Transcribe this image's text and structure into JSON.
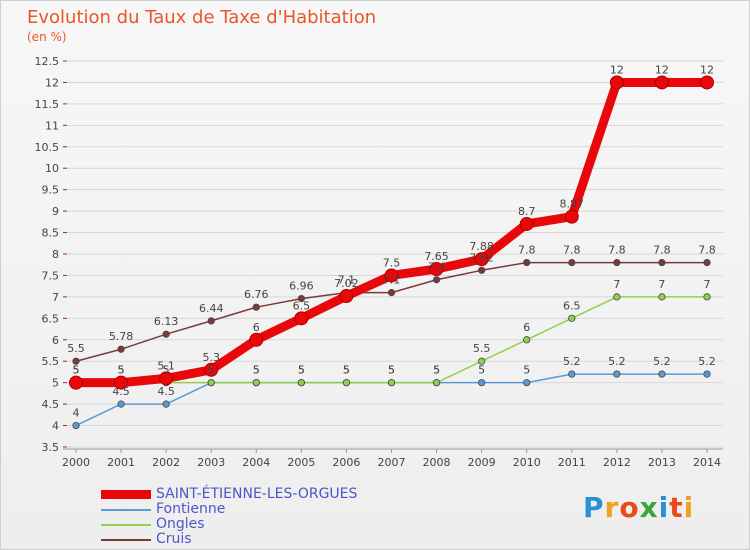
{
  "title": "Evolution du Taux de Taxe d'Habitation",
  "unit_label": "(en %)",
  "logo_text": "Proxiti",
  "chart_data": {
    "type": "line",
    "title": "Evolution du Taux de Taxe d'Habitation",
    "ylabel": "(en %)",
    "xlabel": "",
    "x": [
      2000,
      2001,
      2002,
      2003,
      2004,
      2005,
      2006,
      2007,
      2008,
      2009,
      2010,
      2011,
      2012,
      2013,
      2014
    ],
    "ylim": [
      3.5,
      12.5
    ],
    "ytick_step": 0.5,
    "ytick_labels": [
      "3.5",
      "4",
      "4.5",
      "5",
      "5.5",
      "6",
      "6.5",
      "7",
      "7.5",
      "8",
      "8.5",
      "9",
      "9.5",
      "10",
      "10.5",
      "11",
      "11.5",
      "12",
      "12.5"
    ],
    "grid": "horizontal",
    "legend_position": "bottom-left",
    "series": [
      {
        "name": "SAINT-ÉTIENNE-LES-ORGUES",
        "color": "#e8070a",
        "thick": true,
        "values": [
          5,
          5,
          5.1,
          5.3,
          6,
          6.5,
          7.02,
          7.5,
          7.65,
          7.88,
          8.7,
          8.87,
          12,
          12,
          12
        ],
        "labels": [
          "5",
          "5",
          "5.1",
          "5.3",
          "6",
          "6.5",
          "7.02",
          "7.5",
          "7.65",
          "7.88",
          "8.7",
          "8.87",
          "12",
          "12",
          "12"
        ]
      },
      {
        "name": "Fontienne",
        "color": "#5a9bd5",
        "thick": false,
        "values": [
          4,
          4.5,
          4.5,
          5,
          5,
          5,
          5,
          5,
          5,
          5,
          5,
          5.2,
          5.2,
          5.2,
          5.2
        ],
        "labels": [
          "4",
          "4.5",
          "4.5",
          "5",
          "5",
          "5",
          "5",
          "5",
          "5",
          "5",
          "5",
          "5.2",
          "5.2",
          "5.2",
          "5.2"
        ]
      },
      {
        "name": "Ongles",
        "color": "#8fd14f",
        "thick": false,
        "values": [
          5,
          5,
          5,
          5,
          5,
          5,
          5,
          5,
          5,
          5.5,
          6,
          6.5,
          7,
          7,
          7
        ],
        "labels": [
          "5",
          "5",
          "5",
          "5",
          "5",
          "5",
          "5",
          "5",
          "5",
          "5.5",
          "6",
          "6.5",
          "7",
          "7",
          "7"
        ]
      },
      {
        "name": "Cruis",
        "color": "#7b3a3a",
        "thick": false,
        "values": [
          5.5,
          5.78,
          6.13,
          6.44,
          6.76,
          6.96,
          7.1,
          7.1,
          7.4,
          7.62,
          7.8,
          7.8,
          7.8,
          7.8,
          7.8
        ],
        "labels": [
          "5.5",
          "5.78",
          "6.13",
          "6.44",
          "6.76",
          "6.96",
          "7.1",
          "7.1",
          "7.4",
          "7.62",
          "7.8",
          "7.8",
          "7.8",
          "7.8",
          "7.8"
        ]
      }
    ]
  }
}
